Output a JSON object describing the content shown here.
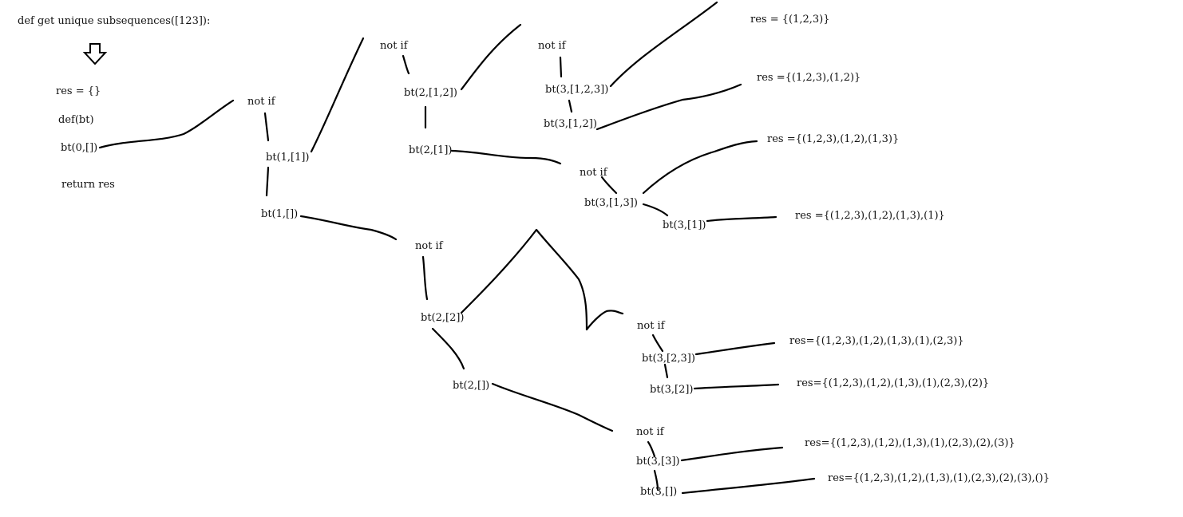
{
  "header": {
    "signature": "def get  unique  subsequences([123]):"
  },
  "main": {
    "res_init": "res = {}",
    "def_bt": "def(bt)",
    "call": "bt(0,[])",
    "return": "return res"
  },
  "tree": {
    "not_if": "not if",
    "n_bt1_1": "bt(1,[1])",
    "n_bt1_e": "bt(1,[])",
    "n_bt2_12": "bt(2,[1,2])",
    "n_bt2_1": "bt(2,[1])",
    "n_bt2_2": "bt(2,[2])",
    "n_bt2_e": "bt(2,[])",
    "n_bt3_123": "bt(3,[1,2,3])",
    "n_bt3_12": "bt(3,[1,2])",
    "n_bt3_13": "bt(3,[1,3])",
    "n_bt3_1": "bt(3,[1])",
    "n_bt3_23": "bt(3,[2,3])",
    "n_bt3_2": "bt(3,[2])",
    "n_bt3_3": "bt(3,[3])",
    "n_bt3_e": "bt(3,[])"
  },
  "results": {
    "r1": "res = {(1,2,3)}",
    "r2": "res ={(1,2,3),(1,2)}",
    "r3": "res ={(1,2,3),(1,2),(1,3)}",
    "r4": "res ={(1,2,3),(1,2),(1,3),(1)}",
    "r5": "res={(1,2,3),(1,2),(1,3),(1),(2,3)}",
    "r6": "res={(1,2,3),(1,2),(1,3),(1),(2,3),(2)}",
    "r7": "res={(1,2,3),(1,2),(1,3),(1),(2,3),(2),(3)}",
    "r8": "res={(1,2,3),(1,2),(1,3),(1),(2,3),(2),(3),()}"
  }
}
